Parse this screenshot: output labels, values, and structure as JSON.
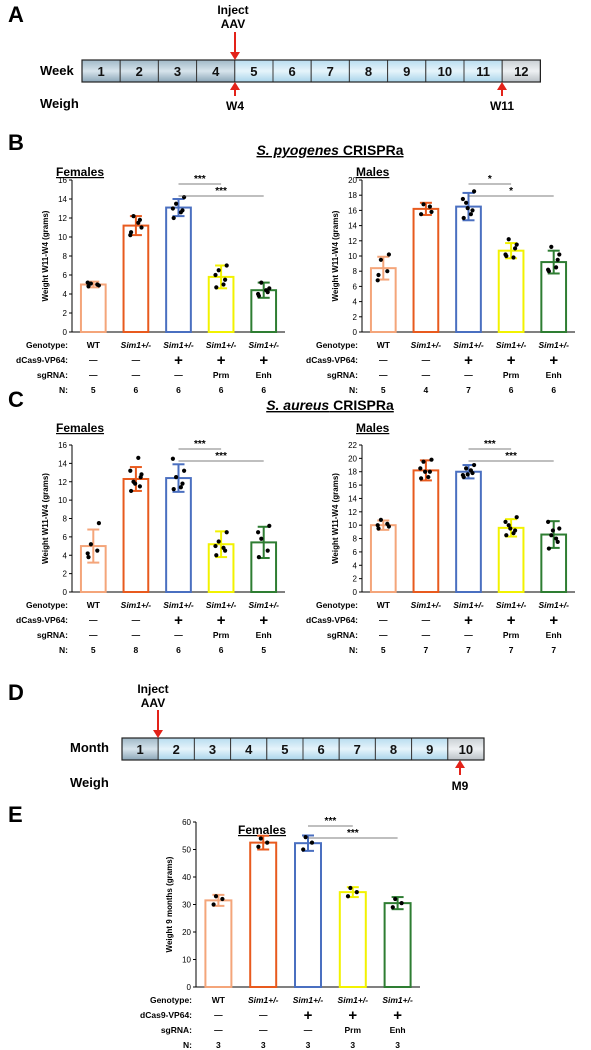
{
  "panel_A": {
    "letter": "A",
    "inject_line1": "Inject",
    "inject_line2": "AAV",
    "row1_label": "Week",
    "row2_label": "Weigh",
    "cells": [
      "1",
      "2",
      "3",
      "4",
      "5",
      "6",
      "7",
      "8",
      "9",
      "10",
      "11",
      "12"
    ],
    "weigh_marks": [
      "W4",
      "W11"
    ]
  },
  "panel_B": {
    "letter": "B",
    "title_species": "S. pyogenes",
    "title_rest": " CRISPRa"
  },
  "panel_C": {
    "letter": "C",
    "title_species": "S. aureus",
    "title_rest": " CRISPRa"
  },
  "panel_D": {
    "letter": "D",
    "inject_line1": "Inject",
    "inject_line2": "AAV",
    "row1_label": "Month",
    "row2_label": "Weigh",
    "cells": [
      "1",
      "2",
      "3",
      "4",
      "5",
      "6",
      "7",
      "8",
      "9",
      "10"
    ],
    "weigh_marks": [
      "M9"
    ]
  },
  "panel_E": {
    "letter": "E"
  },
  "table_labels": {
    "genotype": "Genotype:",
    "dcas": "dCas9-VP64:",
    "sgrna": "sgRNA:",
    "n": "N:"
  },
  "colors": {
    "WT": "#f4a57a",
    "Sim1_a": "#e85a1e",
    "Sim1_b": "#4a6fc0",
    "Prm": "#f2f200",
    "Enh": "#2e7d32",
    "arrow": "#e32219",
    "timeline_dark": "#7f9fb3",
    "timeline_light": "#bfe3f5"
  },
  "chart_data": [
    {
      "id": "B_females",
      "type": "bar",
      "title": "Females",
      "ylabel": "Weight W11-W4 (grams)",
      "ylim": [
        0,
        16
      ],
      "yticks": [
        0,
        2,
        4,
        6,
        8,
        10,
        12,
        14,
        16
      ],
      "categories": [
        "WT",
        "Sim1+/-",
        "Sim1+/-",
        "Sim1+/-",
        "Sim1+/-"
      ],
      "values": [
        5.0,
        11.2,
        13.1,
        5.8,
        4.4
      ],
      "errors": [
        0.3,
        1.0,
        0.9,
        1.2,
        0.8
      ],
      "dCas9": [
        "—",
        "—",
        "+",
        "+",
        "+"
      ],
      "sgRNA": [
        "—",
        "—",
        "—",
        "Prm",
        "Enh"
      ],
      "N": [
        "5",
        "6",
        "6",
        "6",
        "6"
      ],
      "points": [
        [
          4.8,
          5.0,
          5.1,
          4.9,
          5.2
        ],
        [
          10.5,
          11.8,
          12.2,
          11.0,
          10.2,
          11.5
        ],
        [
          12.0,
          12.8,
          13.5,
          14.2,
          13.0,
          12.6
        ],
        [
          4.7,
          5.5,
          6.5,
          7.0,
          6.0,
          5.0
        ],
        [
          3.8,
          4.2,
          5.2,
          4.6,
          4.0,
          4.4
        ]
      ],
      "significance": [
        {
          "from": 2,
          "to": 3,
          "label": "***"
        },
        {
          "from": 2,
          "to": 4,
          "label": "***"
        }
      ]
    },
    {
      "id": "B_males",
      "type": "bar",
      "title": "Males",
      "ylabel": "Weight W11-W4 (grams)",
      "ylim": [
        0,
        20
      ],
      "yticks": [
        0,
        2,
        4,
        6,
        8,
        10,
        12,
        14,
        16,
        18,
        20
      ],
      "categories": [
        "WT",
        "Sim1+/-",
        "Sim1+/-",
        "Sim1+/-",
        "Sim1+/-"
      ],
      "values": [
        8.4,
        16.2,
        16.5,
        10.7,
        9.2
      ],
      "errors": [
        1.5,
        0.8,
        1.8,
        1.0,
        1.5
      ],
      "dCas9": [
        "—",
        "—",
        "+",
        "+",
        "+"
      ],
      "sgRNA": [
        "—",
        "—",
        "—",
        "Prm",
        "Enh"
      ],
      "N": [
        "5",
        "4",
        "7",
        "6",
        "6"
      ],
      "points": [
        [
          7.5,
          8.0,
          9.5,
          10.2,
          6.8
        ],
        [
          15.5,
          16.5,
          16.8,
          15.8
        ],
        [
          15.0,
          16.0,
          17.0,
          18.5,
          17.5,
          15.5,
          16.3
        ],
        [
          10.0,
          11.0,
          12.2,
          11.5,
          10.2,
          9.8
        ],
        [
          8.0,
          9.5,
          11.2,
          10.2,
          8.2,
          8.5
        ]
      ],
      "significance": [
        {
          "from": 2,
          "to": 3,
          "label": "*"
        },
        {
          "from": 2,
          "to": 4,
          "label": "*"
        }
      ]
    },
    {
      "id": "C_females",
      "type": "bar",
      "title": "Females",
      "ylabel": "Weight W11-W4 (grams)",
      "ylim": [
        0,
        16
      ],
      "yticks": [
        0,
        2,
        4,
        6,
        8,
        10,
        12,
        14,
        16
      ],
      "categories": [
        "WT",
        "Sim1+/-",
        "Sim1+/-",
        "Sim1+/-",
        "Sim1+/-"
      ],
      "values": [
        5.0,
        12.3,
        12.4,
        5.2,
        5.4
      ],
      "errors": [
        1.8,
        1.3,
        1.5,
        1.4,
        1.7
      ],
      "dCas9": [
        "—",
        "—",
        "+",
        "+",
        "+"
      ],
      "sgRNA": [
        "—",
        "—",
        "—",
        "Prm",
        "Enh"
      ],
      "N": [
        "5",
        "8",
        "6",
        "6",
        "5"
      ],
      "points": [
        [
          3.8,
          4.5,
          5.2,
          7.5,
          4.2
        ],
        [
          11.0,
          11.5,
          12.0,
          12.8,
          13.2,
          14.6,
          11.8,
          12.5
        ],
        [
          11.2,
          11.8,
          12.5,
          13.2,
          14.5,
          11.4
        ],
        [
          4.0,
          4.5,
          5.5,
          6.5,
          5.0,
          4.8
        ],
        [
          3.8,
          4.5,
          5.8,
          7.2,
          6.5
        ]
      ],
      "significance": [
        {
          "from": 2,
          "to": 3,
          "label": "***"
        },
        {
          "from": 2,
          "to": 4,
          "label": "***"
        }
      ]
    },
    {
      "id": "C_males",
      "type": "bar",
      "title": "Males",
      "ylabel": "Weight W11-W4 (grams)",
      "ylim": [
        0,
        22
      ],
      "yticks": [
        0,
        2,
        4,
        6,
        8,
        10,
        12,
        14,
        16,
        18,
        20,
        22
      ],
      "categories": [
        "WT",
        "Sim1+/-",
        "Sim1+/-",
        "Sim1+/-",
        "Sim1+/-"
      ],
      "values": [
        10.0,
        18.2,
        18.0,
        9.6,
        8.6
      ],
      "errors": [
        0.7,
        1.5,
        1.0,
        1.3,
        2.0
      ],
      "dCas9": [
        "—",
        "—",
        "+",
        "+",
        "+"
      ],
      "sgRNA": [
        "—",
        "—",
        "—",
        "Prm",
        "Enh"
      ],
      "N": [
        "5",
        "7",
        "7",
        "7",
        "7"
      ],
      "points": [
        [
          9.5,
          10.2,
          10.8,
          9.8,
          10.0
        ],
        [
          17.0,
          18.0,
          19.5,
          19.8,
          18.5,
          17.2,
          18.0
        ],
        [
          17.2,
          17.8,
          18.5,
          19.0,
          17.5,
          18.2,
          17.6
        ],
        [
          8.5,
          9.2,
          10.0,
          11.2,
          10.5,
          8.8,
          9.5
        ],
        [
          6.5,
          7.5,
          8.5,
          9.5,
          10.5,
          8.0,
          9.2
        ]
      ],
      "significance": [
        {
          "from": 2,
          "to": 3,
          "label": "***"
        },
        {
          "from": 2,
          "to": 4,
          "label": "***"
        }
      ]
    },
    {
      "id": "E_females",
      "type": "bar",
      "title": "Females",
      "ylabel": "Weight 9 months (grams)",
      "ylim": [
        0,
        60
      ],
      "yticks": [
        0,
        10,
        20,
        30,
        40,
        50,
        60
      ],
      "categories": [
        "WT",
        "Sim1+/-",
        "Sim1+/-",
        "Sim1+/-",
        "Sim1+/-"
      ],
      "values": [
        31.5,
        52.5,
        52.3,
        34.5,
        30.5
      ],
      "errors": [
        2.0,
        2.5,
        2.8,
        1.8,
        2.2
      ],
      "dCas9": [
        "—",
        "—",
        "+",
        "+",
        "+"
      ],
      "sgRNA": [
        "—",
        "—",
        "—",
        "Prm",
        "Enh"
      ],
      "N": [
        "3",
        "3",
        "3",
        "3",
        "3"
      ],
      "points": [
        [
          30.0,
          32.0,
          33.0
        ],
        [
          51.0,
          52.5,
          54.0
        ],
        [
          50.0,
          52.5,
          54.5
        ],
        [
          33.0,
          34.5,
          36.0
        ],
        [
          29.0,
          30.5,
          32.0
        ]
      ],
      "significance": [
        {
          "from": 2,
          "to": 3,
          "label": "***"
        },
        {
          "from": 2,
          "to": 4,
          "label": "***"
        }
      ]
    }
  ]
}
